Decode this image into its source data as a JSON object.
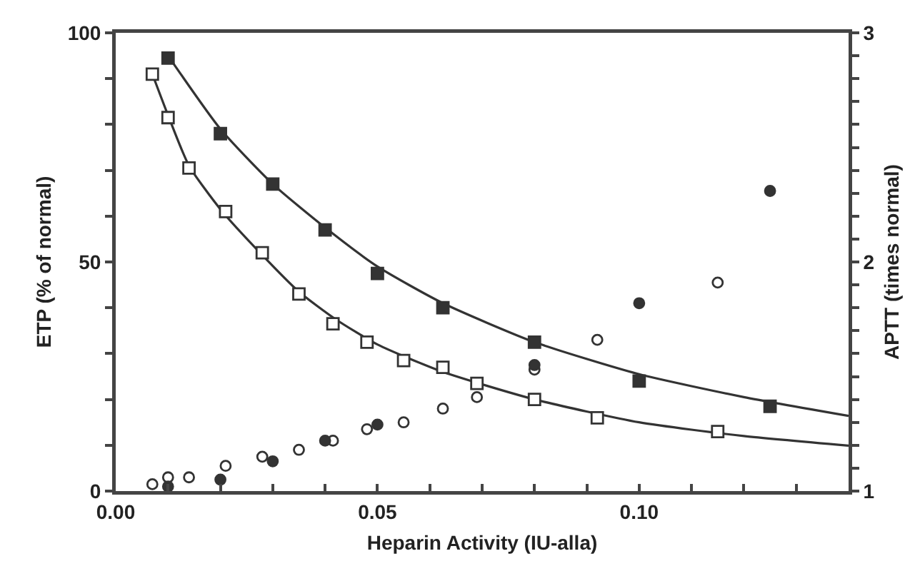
{
  "chart_data": {
    "type": "scatter",
    "xlabel": "Heparin Activity (IU-alla)",
    "ylabel": "ETP (% of normal)",
    "y2label": "APTT (times normal)",
    "xlim": [
      0,
      0.14
    ],
    "ylim": [
      0,
      100
    ],
    "y2lim": [
      1,
      3
    ],
    "xticks": [
      {
        "value": 0,
        "label": "0.00"
      },
      {
        "value": 0.01,
        "label": null
      },
      {
        "value": 0.02,
        "label": null
      },
      {
        "value": 0.03,
        "label": null
      },
      {
        "value": 0.04,
        "label": null
      },
      {
        "value": 0.05,
        "label": "0.05"
      },
      {
        "value": 0.06,
        "label": null
      },
      {
        "value": 0.07,
        "label": null
      },
      {
        "value": 0.08,
        "label": null
      },
      {
        "value": 0.09,
        "label": null
      },
      {
        "value": 0.1,
        "label": "0.10"
      },
      {
        "value": 0.11,
        "label": null
      },
      {
        "value": 0.12,
        "label": null
      },
      {
        "value": 0.13,
        "label": null
      },
      {
        "value": 0.14,
        "label": null
      }
    ],
    "yticks": [
      0,
      {
        "value": 10,
        "label": null
      },
      {
        "value": 20,
        "label": null
      },
      {
        "value": 30,
        "label": null
      },
      {
        "value": 40,
        "label": null
      },
      50,
      {
        "value": 60,
        "label": null
      },
      {
        "value": 70,
        "label": null
      },
      {
        "value": 80,
        "label": null
      },
      {
        "value": 90,
        "label": null
      },
      100
    ],
    "y2ticks": [
      1,
      {
        "value": 1.1,
        "label": null
      },
      {
        "value": 1.2,
        "label": null
      },
      {
        "value": 1.3,
        "label": null
      },
      {
        "value": 1.4,
        "label": null
      },
      {
        "value": 1.5,
        "label": null
      },
      {
        "value": 1.6,
        "label": null
      },
      {
        "value": 1.7,
        "label": null
      },
      {
        "value": 1.8,
        "label": null
      },
      {
        "value": 1.9,
        "label": null
      },
      2,
      {
        "value": 2.1,
        "label": null
      },
      {
        "value": 2.2,
        "label": null
      },
      {
        "value": 2.3,
        "label": null
      },
      {
        "value": 2.4,
        "label": null
      },
      {
        "value": 2.5,
        "label": null
      },
      {
        "value": 2.6,
        "label": null
      },
      {
        "value": 2.7,
        "label": null
      },
      {
        "value": 2.8,
        "label": null
      },
      {
        "value": 2.9,
        "label": null
      },
      3
    ],
    "grid": false,
    "series": [
      {
        "type": "line",
        "color": "#333333",
        "marker": "none",
        "line_style": "solid",
        "x": [
          0.01,
          0.02,
          0.03,
          0.04,
          0.05,
          0.0625,
          0.08,
          0.1,
          0.12,
          0.14
        ],
        "values": [
          95,
          79,
          67,
          57.5,
          49,
          41,
          32.5,
          25.5,
          20.5,
          16.4
        ]
      },
      {
        "type": "line",
        "color": "#333333",
        "marker": "none",
        "line_style": "solid",
        "x": [
          0.007,
          0.01,
          0.014,
          0.02,
          0.028,
          0.035,
          0.042,
          0.05,
          0.0625,
          0.08,
          0.1,
          0.12,
          0.14
        ],
        "values": [
          91,
          82,
          71,
          61.5,
          51.5,
          43.5,
          37.5,
          32,
          26,
          20,
          15,
          12,
          9.9
        ]
      },
      {
        "color": "#333333",
        "marker": "square",
        "x": [
          0.01,
          0.02,
          0.03,
          0.04,
          0.05,
          0.0625,
          0.08,
          0.1,
          0.125
        ],
        "values": [
          94.5,
          78,
          67,
          57,
          47.5,
          40,
          32.5,
          24,
          18.5
        ]
      },
      {
        "color": "#ffffff",
        "marker": "square",
        "x": [
          0.007,
          0.01,
          0.014,
          0.021,
          0.028,
          0.035,
          0.0415,
          0.048,
          0.055,
          0.0625,
          0.069,
          0.08,
          0.092,
          0.115
        ],
        "values": [
          91,
          81.5,
          70.5,
          61,
          52,
          43,
          36.5,
          32.5,
          28.5,
          27,
          23.5,
          20,
          16,
          13
        ]
      },
      {
        "axis": "y2",
        "color": "#ffffff",
        "marker": "circle",
        "x": [
          0.007,
          0.01,
          0.014,
          0.021,
          0.028,
          0.035,
          0.0415,
          0.048,
          0.055,
          0.0625,
          0.069,
          0.08,
          0.092,
          0.115
        ],
        "values": [
          1.03,
          1.06,
          1.06,
          1.11,
          1.15,
          1.18,
          1.22,
          1.27,
          1.3,
          1.36,
          1.41,
          1.53,
          1.66,
          1.91
        ]
      },
      {
        "axis": "y2",
        "color": "#333333",
        "marker": "circle",
        "x": [
          0.01,
          0.02,
          0.03,
          0.04,
          0.05,
          0.08,
          0.1,
          0.125
        ],
        "values": [
          1.02,
          1.05,
          1.13,
          1.22,
          1.29,
          1.55,
          1.82,
          2.31
        ]
      }
    ]
  }
}
